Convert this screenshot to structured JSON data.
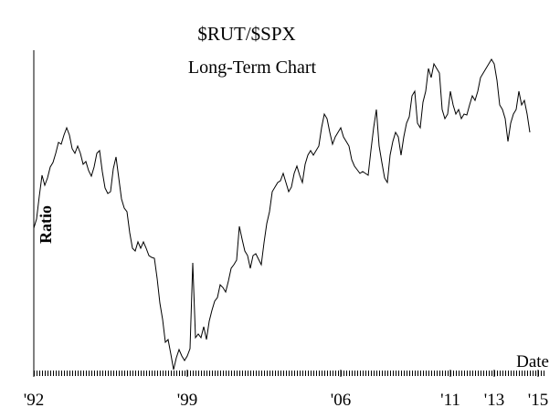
{
  "chart_data": {
    "type": "line",
    "title": "$RUT/$SPX",
    "subtitle": "Long-Term Chart",
    "y_label": "Ratio",
    "x_label": "Date",
    "xlim": [
      1992,
      2015
    ],
    "xticks": [
      {
        "value": 1992,
        "label": "'92"
      },
      {
        "value": 1999,
        "label": "'99"
      },
      {
        "value": 2006,
        "label": "'06"
      },
      {
        "value": 2011,
        "label": "'11"
      },
      {
        "value": 2013,
        "label": "'13"
      },
      {
        "value": 2015,
        "label": "'15"
      }
    ],
    "ylim": [
      0.3,
      0.655
    ],
    "x": [
      1992,
      1992.125,
      1992.25,
      1992.375,
      1992.5,
      1992.625,
      1992.75,
      1992.875,
      1993,
      1993.125,
      1993.25,
      1993.375,
      1993.5,
      1993.625,
      1993.75,
      1993.875,
      1994,
      1994.125,
      1994.25,
      1994.375,
      1994.5,
      1994.625,
      1994.75,
      1994.875,
      1995,
      1995.125,
      1995.25,
      1995.375,
      1995.5,
      1995.625,
      1995.75,
      1995.875,
      1996,
      1996.125,
      1996.25,
      1996.375,
      1996.5,
      1996.625,
      1996.75,
      1996.875,
      1997,
      1997.125,
      1997.25,
      1997.375,
      1997.5,
      1997.625,
      1997.75,
      1997.875,
      1998,
      1998.125,
      1998.25,
      1998.375,
      1998.5,
      1998.625,
      1998.75,
      1998.875,
      1999,
      1999.125,
      1999.25,
      1999.375,
      1999.5,
      1999.625,
      1999.75,
      1999.875,
      2000,
      2000.125,
      2000.25,
      2000.375,
      2000.5,
      2000.625,
      2000.75,
      2000.875,
      2001,
      2001.125,
      2001.25,
      2001.375,
      2001.5,
      2001.625,
      2001.75,
      2001.875,
      2002,
      2002.125,
      2002.25,
      2002.375,
      2002.5,
      2002.625,
      2002.75,
      2002.875,
      2003,
      2003.125,
      2003.25,
      2003.375,
      2003.5,
      2003.625,
      2003.75,
      2003.875,
      2004,
      2004.125,
      2004.25,
      2004.375,
      2004.5,
      2004.625,
      2004.75,
      2004.875,
      2005,
      2005.125,
      2005.25,
      2005.375,
      2005.5,
      2005.625,
      2005.75,
      2005.875,
      2006,
      2006.125,
      2006.25,
      2006.375,
      2006.5,
      2006.625,
      2006.75,
      2006.875,
      2007,
      2007.125,
      2007.25,
      2007.375,
      2007.5,
      2007.625,
      2007.75,
      2007.875,
      2008,
      2008.125,
      2008.25,
      2008.375,
      2008.5,
      2008.625,
      2008.75,
      2008.875,
      2009,
      2009.125,
      2009.25,
      2009.375,
      2009.5,
      2009.625,
      2009.75,
      2009.875,
      2010,
      2010.125,
      2010.25,
      2010.375,
      2010.5,
      2010.625,
      2010.75,
      2010.875,
      2011,
      2011.125,
      2011.25,
      2011.375,
      2011.5,
      2011.625,
      2011.75,
      2011.875,
      2012,
      2012.125,
      2012.25,
      2012.375,
      2012.5,
      2012.625,
      2012.75,
      2012.875,
      2013,
      2013.125,
      2013.25,
      2013.375,
      2013.5,
      2013.625,
      2013.75,
      2013.875,
      2014,
      2014.125,
      2014.25,
      2014.375,
      2014.5,
      2014.625
    ],
    "series": [
      {
        "name": "$RUT/$SPX",
        "color": "#000000",
        "values": [
          0.46,
          0.47,
          0.495,
          0.518,
          0.507,
          0.515,
          0.527,
          0.532,
          0.542,
          0.554,
          0.552,
          0.562,
          0.57,
          0.562,
          0.547,
          0.542,
          0.55,
          0.542,
          0.53,
          0.533,
          0.523,
          0.517,
          0.527,
          0.542,
          0.545,
          0.522,
          0.504,
          0.498,
          0.5,
          0.525,
          0.538,
          0.515,
          0.492,
          0.482,
          0.478,
          0.455,
          0.438,
          0.435,
          0.445,
          0.438,
          0.445,
          0.438,
          0.43,
          0.428,
          0.427,
          0.405,
          0.378,
          0.36,
          0.335,
          0.338,
          0.322,
          0.305,
          0.318,
          0.327,
          0.32,
          0.315,
          0.32,
          0.328,
          0.422,
          0.34,
          0.344,
          0.34,
          0.352,
          0.338,
          0.358,
          0.37,
          0.38,
          0.384,
          0.398,
          0.395,
          0.39,
          0.402,
          0.416,
          0.42,
          0.425,
          0.462,
          0.448,
          0.435,
          0.43,
          0.416,
          0.43,
          0.432,
          0.426,
          0.42,
          0.444,
          0.465,
          0.478,
          0.5,
          0.505,
          0.51,
          0.512,
          0.52,
          0.51,
          0.5,
          0.505,
          0.52,
          0.528,
          0.518,
          0.51,
          0.53,
          0.54,
          0.545,
          0.54,
          0.545,
          0.55,
          0.57,
          0.585,
          0.58,
          0.565,
          0.552,
          0.56,
          0.565,
          0.57,
          0.56,
          0.555,
          0.55,
          0.535,
          0.528,
          0.524,
          0.52,
          0.522,
          0.52,
          0.518,
          0.545,
          0.57,
          0.59,
          0.55,
          0.532,
          0.515,
          0.51,
          0.54,
          0.555,
          0.565,
          0.56,
          0.54,
          0.56,
          0.575,
          0.582,
          0.605,
          0.61,
          0.575,
          0.57,
          0.598,
          0.61,
          0.635,
          0.625,
          0.64,
          0.635,
          0.63,
          0.59,
          0.58,
          0.585,
          0.61,
          0.595,
          0.585,
          0.59,
          0.58,
          0.585,
          0.584,
          0.595,
          0.605,
          0.6,
          0.61,
          0.625,
          0.63,
          0.635,
          0.64,
          0.645,
          0.64,
          0.622,
          0.595,
          0.59,
          0.58,
          0.555,
          0.575,
          0.585,
          0.59,
          0.61,
          0.595,
          0.6,
          0.585,
          0.565
        ]
      }
    ]
  }
}
